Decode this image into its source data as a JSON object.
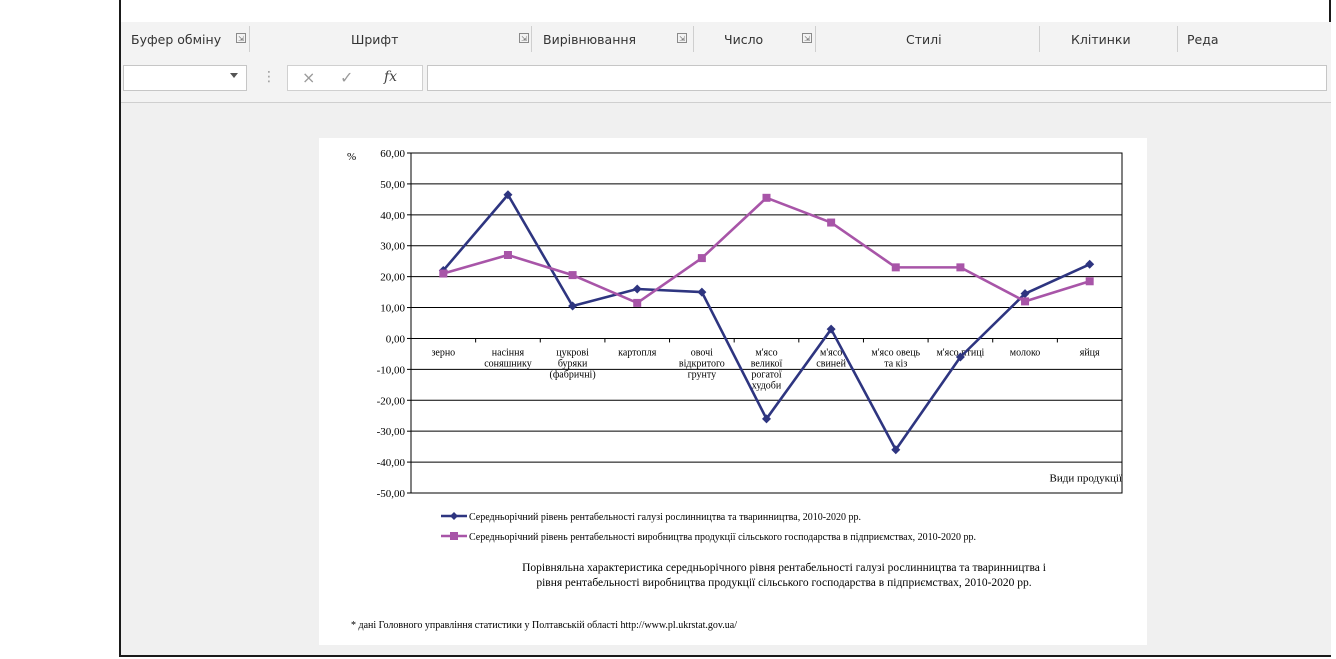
{
  "ribbon": {
    "groups": [
      {
        "label": "Буфер обміну",
        "launcher": "⇲"
      },
      {
        "label": "Шрифт",
        "launcher": "⇲"
      },
      {
        "label": "Вирівнювання",
        "launcher": "⇲"
      },
      {
        "label": "Число",
        "launcher": "⇲"
      },
      {
        "label": "Стилі"
      },
      {
        "label": "Клітинки"
      },
      {
        "label": "Реда"
      }
    ]
  },
  "formula_bar": {
    "cancel_icon": "×",
    "enter_icon": "✓",
    "fx_label": "fx",
    "name_box_value": "",
    "formula_value": ""
  },
  "chart_data": {
    "type": "line",
    "ylabel": "%",
    "xlabel": "Види продукції",
    "ylim": [
      -50,
      60
    ],
    "yticks": [
      "60,00",
      "50,00",
      "40,00",
      "30,00",
      "20,00",
      "10,00",
      "0,00",
      "-10,00",
      "-20,00",
      "-30,00",
      "-40,00",
      "-50,00"
    ],
    "grid": true,
    "legend_position": "bottom",
    "categories": [
      [
        "зерно"
      ],
      [
        "насіння",
        "соняшнику"
      ],
      [
        "цукрові",
        "буряки",
        "(фабричні)"
      ],
      [
        "картопля"
      ],
      [
        "овочі",
        "відкритого",
        "грунту"
      ],
      [
        "м'ясо",
        "великої",
        "рогатої",
        "худоби"
      ],
      [
        "м'ясо",
        "свиней"
      ],
      [
        "м'ясо овець",
        "та кіз"
      ],
      [
        "м'ясо птиці"
      ],
      [
        "молоко"
      ],
      [
        "яйця"
      ]
    ],
    "series": [
      {
        "name": "Середньорічний рівень рентабельності галузі рослинництва та тваринництва, 2010-2020 рр.",
        "color": "#2e3580",
        "marker": "diamond",
        "values": [
          22.0,
          46.5,
          10.5,
          16.0,
          15.0,
          -26.0,
          3.0,
          -36.0,
          -6.0,
          14.5,
          24.0
        ]
      },
      {
        "name": "Середньорічний рівень рентабельності виробництва продукції сільського господарства в підприємствах, 2010-2020 рр.",
        "color": "#a855a8",
        "marker": "square",
        "values": [
          21.0,
          27.0,
          20.5,
          11.5,
          26.0,
          45.5,
          37.5,
          23.0,
          23.0,
          12.0,
          18.5
        ]
      }
    ],
    "caption": [
      "Порівняльна характеристика середньорічного рівня рентабельності галузі рослинництва та тваринництва і",
      "рівня рентабельності виробництва продукції сільського господарства в підприємствах, 2010-2020 рр."
    ],
    "footnote": "* дані Головного управління статистики у Полтавській області http://www.pl.ukrstat.gov.ua/"
  }
}
